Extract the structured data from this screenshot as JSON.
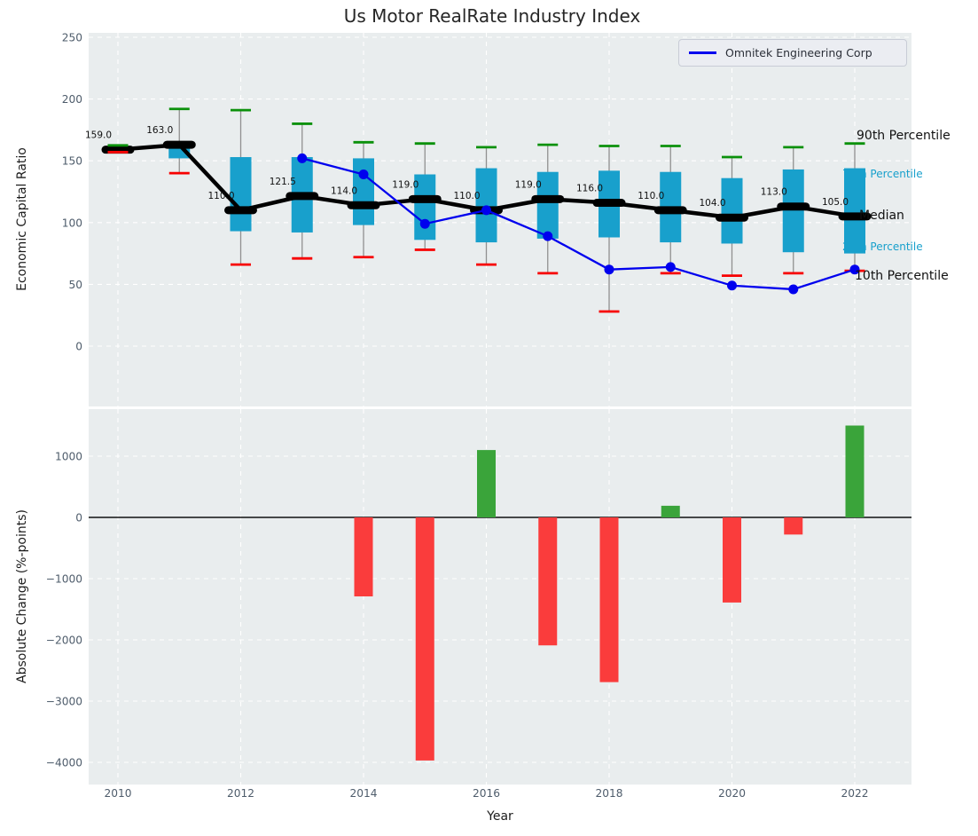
{
  "title": "Us Motor RealRate Industry Index",
  "legend": {
    "label": "Omnitek Engineering Corp",
    "line_color": "#0000ee"
  },
  "colors": {
    "figure_bg": "#ffffff",
    "axes_bg": "#e9edee",
    "grid": "#ffffff",
    "box_fill": "#18a0cc",
    "whisker": "#909090",
    "cap_high": "#0b910b",
    "cap_low": "#f70000",
    "median": "#000000",
    "company_line": "#0000ee",
    "bar_positive": "#3aa43a",
    "bar_negative": "#fa3c3c",
    "tick_label": "#4e5c6b",
    "text": "#262626",
    "percentile_cyan": "#18a0cc"
  },
  "chart_data": [
    {
      "type": "boxplot+line",
      "title": "Us Motor RealRate Industry Index",
      "ylabel": "Economic Capital Ratio",
      "xlabel": "",
      "yticks": [
        0,
        50,
        100,
        150,
        200,
        250
      ],
      "xticks": [
        2010,
        2012,
        2014,
        2016,
        2018,
        2020,
        2022
      ],
      "ylim": [
        -49,
        254
      ],
      "xlim": [
        2009.5,
        2022.95
      ],
      "grid": true,
      "legend_position": "upper right",
      "boxes": [
        {
          "year": 2010,
          "median": 159.0,
          "q1": 158,
          "q3": 160.5,
          "whisker_low": 157,
          "whisker_high": 162.5,
          "label": "159.0"
        },
        {
          "year": 2011,
          "median": 163.0,
          "q1": 152,
          "q3": 164.5,
          "whisker_low": 140,
          "whisker_high": 192,
          "label": "163.0"
        },
        {
          "year": 2012,
          "median": 110.0,
          "q1": 93,
          "q3": 153,
          "whisker_low": 66,
          "whisker_high": 191,
          "label": "110.0"
        },
        {
          "year": 2013,
          "median": 121.5,
          "q1": 92,
          "q3": 153,
          "whisker_low": 71,
          "whisker_high": 180,
          "label": "121.5"
        },
        {
          "year": 2014,
          "median": 114.0,
          "q1": 98,
          "q3": 152,
          "whisker_low": 72,
          "whisker_high": 165,
          "label": "114.0"
        },
        {
          "year": 2015,
          "median": 119.0,
          "q1": 86,
          "q3": 139,
          "whisker_low": 78,
          "whisker_high": 164,
          "label": "119.0"
        },
        {
          "year": 2016,
          "median": 110.0,
          "q1": 84,
          "q3": 144,
          "whisker_low": 66,
          "whisker_high": 161,
          "label": "110.0"
        },
        {
          "year": 2017,
          "median": 119.0,
          "q1": 87,
          "q3": 141,
          "whisker_low": 59,
          "whisker_high": 163,
          "label": "119.0"
        },
        {
          "year": 2018,
          "median": 116.0,
          "q1": 88,
          "q3": 142,
          "whisker_low": 28,
          "whisker_high": 162,
          "label": "116.0"
        },
        {
          "year": 2019,
          "median": 110.0,
          "q1": 84,
          "q3": 141,
          "whisker_low": 59,
          "whisker_high": 162,
          "label": "110.0"
        },
        {
          "year": 2020,
          "median": 104.0,
          "q1": 83,
          "q3": 136,
          "whisker_low": 57,
          "whisker_high": 153,
          "label": "104.0"
        },
        {
          "year": 2021,
          "median": 113.0,
          "q1": 76,
          "q3": 143,
          "whisker_low": 59,
          "whisker_high": 161,
          "label": "113.0"
        },
        {
          "year": 2022,
          "median": 105.0,
          "q1": 75,
          "q3": 144,
          "whisker_low": 61,
          "whisker_high": 164,
          "label": "105.0"
        }
      ],
      "series": [
        {
          "name": "Omnitek Engineering Corp",
          "x": [
            2013,
            2014,
            2015,
            2016,
            2017,
            2018,
            2019,
            2020,
            2021,
            2022
          ],
          "y": [
            152,
            139,
            99,
            110,
            89,
            62,
            64,
            49,
            46,
            62
          ]
        }
      ],
      "annotations": [
        {
          "text": "90th Percentile",
          "role": "p90",
          "color": "#111111",
          "cyan": false,
          "x": 966,
          "y": 157,
          "size": 14
        },
        {
          "text": "75th Percentile",
          "role": "p75",
          "color": "#18a0cc",
          "cyan": true,
          "x": 950,
          "y": 200,
          "size": 12
        },
        {
          "text": "Median",
          "role": "median",
          "color": "#111111",
          "cyan": false,
          "x": 969,
          "y": 247,
          "size": 14
        },
        {
          "text": "25th Percentile",
          "role": "p25",
          "color": "#18a0cc",
          "cyan": true,
          "x": 950,
          "y": 282,
          "size": 12
        },
        {
          "text": "10th Percentile",
          "role": "p10",
          "color": "#111111",
          "cyan": false,
          "x": 964,
          "y": 315,
          "size": 14
        }
      ]
    },
    {
      "type": "bar",
      "ylabel": "Absolute Change (%-points)",
      "xlabel": "Year",
      "categories": [
        2010,
        2011,
        2012,
        2013,
        2014,
        2015,
        2016,
        2017,
        2018,
        2019,
        2020,
        2021,
        2022
      ],
      "values": [
        0,
        0,
        0,
        0,
        -1290,
        -3970,
        1100,
        -2090,
        -2690,
        190,
        -1390,
        -280,
        1500
      ],
      "yticks": [
        1000,
        0,
        -1000,
        -2000,
        -3000,
        -4000
      ],
      "xticks": [
        2010,
        2012,
        2014,
        2016,
        2018,
        2020,
        2022
      ],
      "ylim": [
        -4360,
        1770
      ],
      "xlim": [
        2009.5,
        2022.95
      ],
      "grid": true,
      "zero_line": true
    }
  ]
}
